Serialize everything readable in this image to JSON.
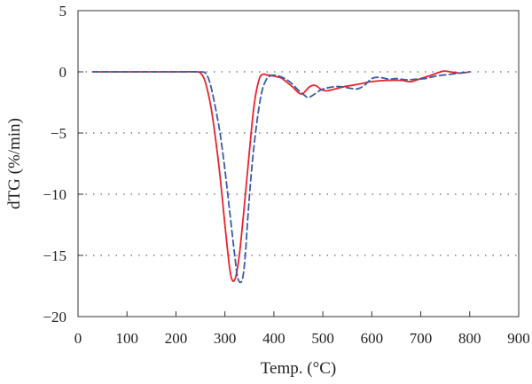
{
  "chart_data": {
    "type": "line",
    "xlabel": "Temp. (°C)",
    "ylabel": "dTG (%/min)",
    "xlim": [
      0,
      900
    ],
    "ylim": [
      -20,
      5
    ],
    "xticks": [
      0,
      100,
      200,
      300,
      400,
      500,
      600,
      700,
      800,
      900
    ],
    "yticks": [
      5,
      0,
      -5,
      -10,
      -15,
      -20
    ],
    "grid": "horizontal dotted at -15, -10, -5, 0",
    "series": [
      {
        "color": "#e8232b",
        "style": "solid",
        "x": [
          30,
          100,
          200,
          240,
          250,
          258,
          265,
          272,
          280,
          290,
          300,
          308,
          313,
          318,
          323,
          330,
          340,
          350,
          360,
          370,
          378,
          385,
          395,
          405,
          415,
          425,
          440,
          450,
          458,
          465,
          472,
          480,
          487,
          495,
          505,
          515,
          530,
          545,
          560,
          580,
          600,
          630,
          660,
          680,
          700,
          720,
          745,
          760,
          780,
          800
        ],
        "values": [
          0,
          0,
          0,
          0,
          -0.1,
          -0.6,
          -1.6,
          -3.0,
          -5.2,
          -8.5,
          -12.5,
          -15.5,
          -16.8,
          -17.1,
          -16.6,
          -14.8,
          -10.8,
          -6.5,
          -2.6,
          -0.6,
          -0.2,
          -0.25,
          -0.3,
          -0.4,
          -0.5,
          -0.8,
          -1.3,
          -1.7,
          -1.8,
          -1.55,
          -1.25,
          -1.1,
          -1.15,
          -1.4,
          -1.55,
          -1.5,
          -1.35,
          -1.2,
          -1.1,
          -0.95,
          -0.8,
          -0.7,
          -0.7,
          -0.8,
          -0.55,
          -0.3,
          0.05,
          0.0,
          -0.1,
          0.0
        ]
      },
      {
        "color": "#3a5ba8",
        "style": "dashed",
        "x": [
          30,
          100,
          200,
          250,
          260,
          266,
          272,
          280,
          290,
          300,
          310,
          320,
          326,
          332,
          337,
          342,
          347,
          355,
          365,
          375,
          385,
          395,
          405,
          420,
          435,
          450,
          462,
          470,
          480,
          495,
          510,
          530,
          550,
          570,
          585,
          600,
          615,
          635,
          650,
          670,
          690,
          710,
          730,
          750,
          770,
          790,
          800
        ],
        "values": [
          0,
          0,
          0,
          0,
          -0.1,
          -0.5,
          -1.3,
          -2.8,
          -5.0,
          -8.0,
          -11.5,
          -15.0,
          -16.8,
          -17.2,
          -16.7,
          -14.8,
          -11.8,
          -7.8,
          -4.2,
          -1.7,
          -0.6,
          -0.3,
          -0.3,
          -0.5,
          -0.9,
          -1.5,
          -1.9,
          -2.1,
          -1.9,
          -1.5,
          -1.3,
          -1.2,
          -1.3,
          -1.4,
          -1.1,
          -0.55,
          -0.45,
          -0.6,
          -0.55,
          -0.65,
          -0.6,
          -0.55,
          -0.35,
          -0.25,
          -0.15,
          -0.05,
          0.0
        ]
      }
    ]
  }
}
